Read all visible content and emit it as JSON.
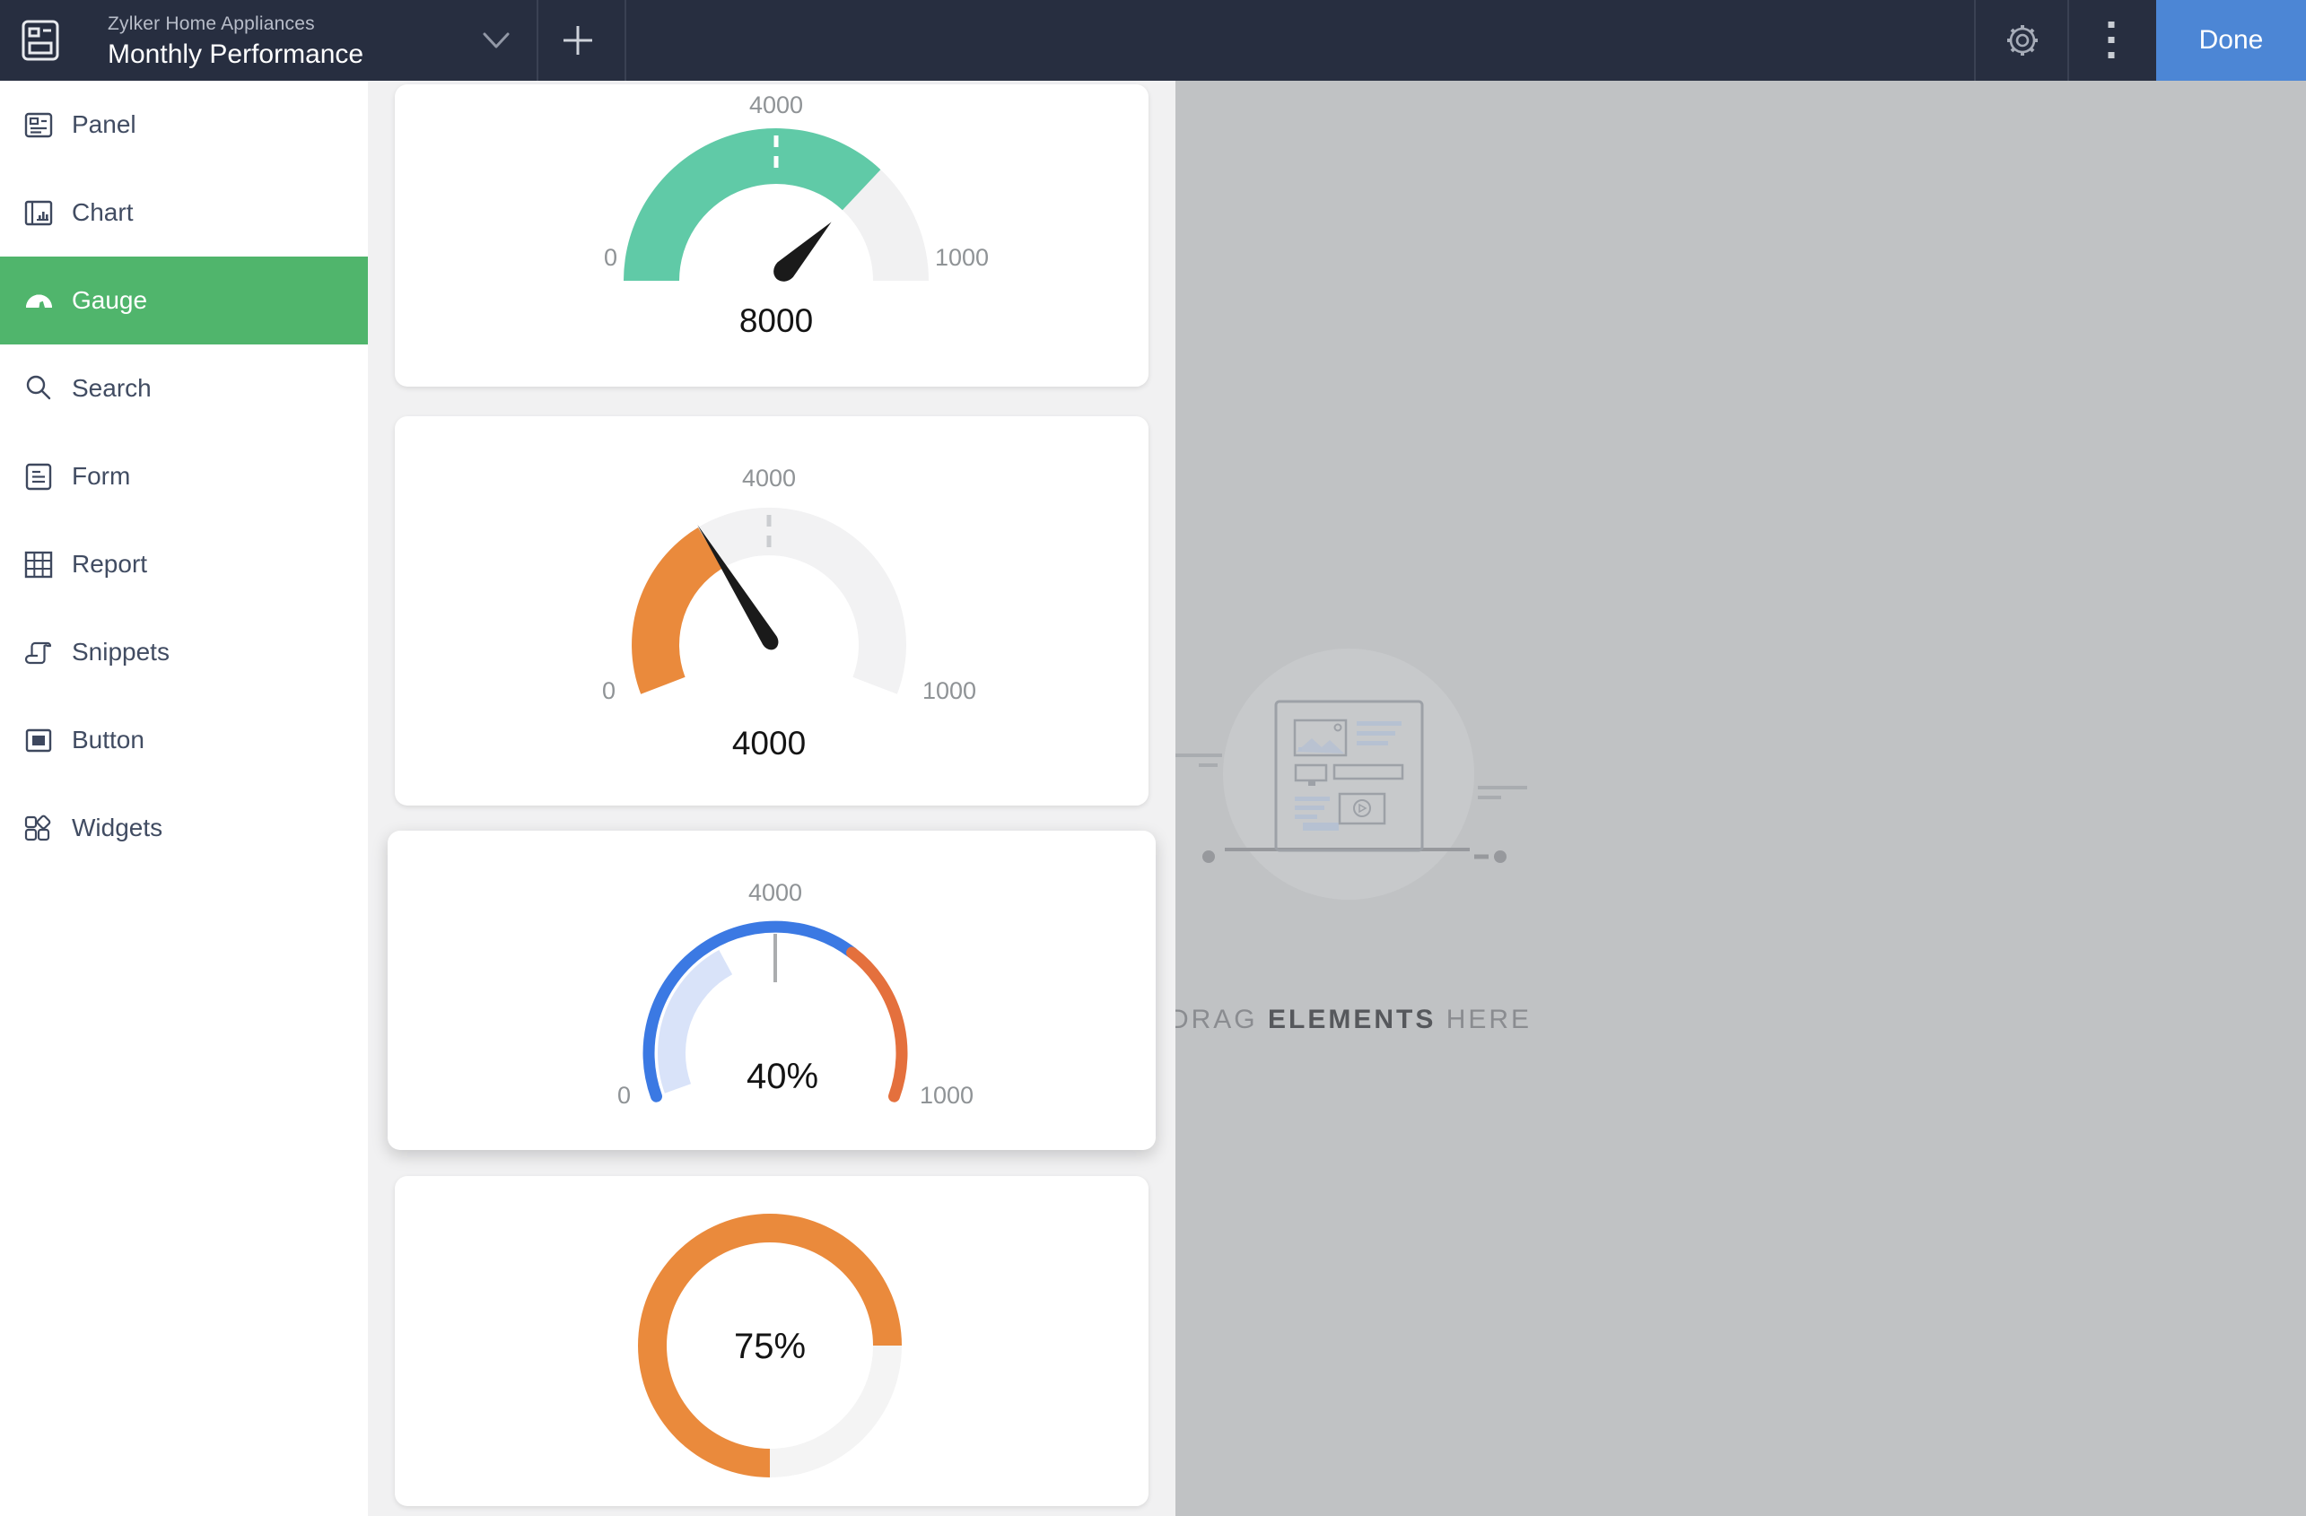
{
  "header": {
    "app_name": "Zylker Home Appliances",
    "page_title": "Monthly Performance",
    "done_label": "Done",
    "colors": {
      "bg": "#272E40",
      "done_bg": "#4C86D5",
      "divider": "#3A4153"
    }
  },
  "sidebar": {
    "selected_color": "#50B56C",
    "items": [
      {
        "label": "Panel",
        "icon": "panel-icon",
        "selected": false
      },
      {
        "label": "Chart",
        "icon": "chart-icon",
        "selected": false
      },
      {
        "label": "Gauge",
        "icon": "gauge-icon",
        "selected": true
      },
      {
        "label": "Search",
        "icon": "search-icon",
        "selected": false
      },
      {
        "label": "Form",
        "icon": "form-icon",
        "selected": false
      },
      {
        "label": "Report",
        "icon": "report-icon",
        "selected": false
      },
      {
        "label": "Snippets",
        "icon": "snippets-icon",
        "selected": false
      },
      {
        "label": "Button",
        "icon": "button-icon",
        "selected": false
      },
      {
        "label": "Widgets",
        "icon": "widgets-icon",
        "selected": false
      }
    ]
  },
  "canvas": {
    "placeholder_prefix": "DRAG",
    "placeholder_strong": "ELEMENTS",
    "placeholder_suffix": "HERE",
    "bg": "#C0C2C4"
  },
  "chart_data": [
    {
      "type": "gauge",
      "style": "solid-semicircle",
      "min": 0,
      "max": 1000,
      "min_label": "0",
      "max_label": "1000",
      "threshold_label": "4000",
      "value": 8000,
      "value_label": "8000",
      "fill_fraction": 0.74,
      "fill_color": "#60CAA7",
      "track_color": "#F1F1F2",
      "needle_angle_deg": 44,
      "tick_style": "dashed",
      "tick_color": "#FFFFFF"
    },
    {
      "type": "gauge",
      "style": "solid-semicircle",
      "min": 0,
      "max": 1000,
      "min_label": "0",
      "max_label": "1000",
      "threshold_label": "4000",
      "value": 4000,
      "value_label": "4000",
      "fill_fraction": 0.36,
      "fill_color": "#EA8A3C",
      "track_color": "#F2F2F3",
      "needle_angle_deg": -32,
      "tick_style": "dashed",
      "tick_color": "#CBCDD0"
    },
    {
      "type": "gauge",
      "style": "thin-arc",
      "min": 0,
      "max": 1000,
      "min_label": "0",
      "max_label": "1000",
      "threshold_label": "4000",
      "value_label": "40%",
      "segments": [
        {
          "fraction": 0.67,
          "color": "#3B79E3"
        },
        {
          "fraction": 1.0,
          "color": "#E4703D"
        }
      ],
      "band": {
        "fraction": 0.37,
        "color": "#D9E3F9"
      },
      "tick_style": "solid",
      "tick_color": "#ABADAF"
    },
    {
      "type": "gauge",
      "style": "donut",
      "value_label": "75%",
      "fill_fraction": 0.75,
      "fill_color": "#EA8A3C",
      "track_color": "#F4F4F4"
    }
  ],
  "text_colors": {
    "axis_label": "#8F9396",
    "value": "#141414"
  }
}
